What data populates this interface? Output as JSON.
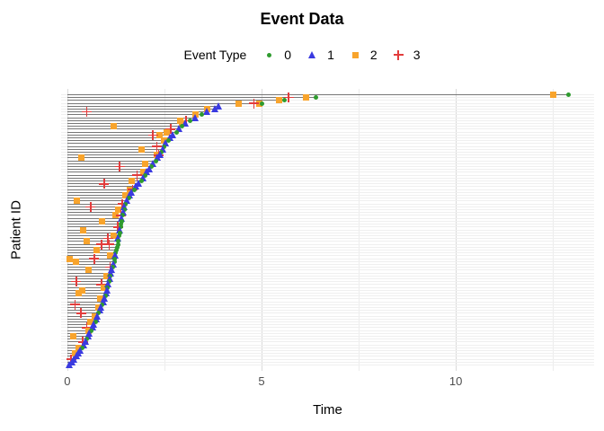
{
  "title": "Event Data",
  "legend": {
    "title": "Event Type",
    "items": [
      {
        "label": "0",
        "shape": "circle",
        "color": "#2e9b2e"
      },
      {
        "label": "1",
        "shape": "triangle",
        "color": "#3a3ae0"
      },
      {
        "label": "2",
        "shape": "square",
        "color": "#f8a42c"
      },
      {
        "label": "3",
        "shape": "plus",
        "color": "#e23c3c"
      }
    ]
  },
  "axes": {
    "x": {
      "label": "Time",
      "tick_labels": [
        "0",
        "5",
        "10"
      ],
      "ticks": [
        0,
        5,
        10
      ],
      "minor_gridlines": [
        2.5,
        7.5,
        12.5
      ],
      "range": [
        -0.16,
        13.56
      ]
    },
    "y": {
      "label": "Patient ID",
      "tick_labels": []
    }
  },
  "chart_data": {
    "type": "scatter",
    "title": "Event Data",
    "xlabel": "Time",
    "ylabel": "Patient ID",
    "xlim": [
      -0.16,
      13.56
    ],
    "grid": "light gray; horizontal line per patient row; vertical major at 0,5,10 and minor at 2.5,7.5,12.5",
    "legend_position": "top center",
    "n_patients": 95,
    "event_types": {
      "0": "green circle",
      "1": "blue triangle",
      "2": "orange square",
      "3": "red plus"
    },
    "colors": {
      "0": "#2e9b2e",
      "1": "#3a3ae0",
      "2": "#f8a42c",
      "3": "#e23c3c",
      "segment": "#777777"
    },
    "patients_note": "rows ordered top to bottom; each row = [end_time, end_event_type, [[time, event_type], ...] extra events]; gray segment spans 0..end_time",
    "patients": [
      [
        12.9,
        0,
        [
          [
            12.5,
            2
          ]
        ]
      ],
      [
        6.4,
        0,
        [
          [
            6.15,
            2
          ],
          [
            5.7,
            3
          ]
        ]
      ],
      [
        5.6,
        0,
        [
          [
            5.45,
            2
          ]
        ]
      ],
      [
        5.0,
        0,
        [
          [
            4.95,
            2
          ],
          [
            4.8,
            3
          ],
          [
            4.4,
            2
          ]
        ]
      ],
      [
        3.9,
        1,
        []
      ],
      [
        3.8,
        1,
        [
          [
            3.6,
            2
          ]
        ]
      ],
      [
        3.6,
        1,
        [
          [
            0.5,
            3
          ]
        ]
      ],
      [
        3.45,
        0,
        [
          [
            3.3,
            2
          ]
        ]
      ],
      [
        3.3,
        1,
        []
      ],
      [
        3.15,
        0,
        [
          [
            2.9,
            2
          ],
          [
            3.05,
            3
          ]
        ]
      ],
      [
        3.05,
        1,
        [
          [
            2.95,
            2
          ]
        ]
      ],
      [
        2.95,
        0,
        [
          [
            1.2,
            2
          ]
        ]
      ],
      [
        2.88,
        1,
        [
          [
            2.66,
            3
          ]
        ]
      ],
      [
        2.82,
        0,
        [
          [
            2.57,
            2
          ]
        ]
      ],
      [
        2.72,
        1,
        [
          [
            2.38,
            2
          ],
          [
            2.2,
            3
          ]
        ]
      ],
      [
        2.66,
        1,
        []
      ],
      [
        2.6,
        0,
        [
          [
            2.5,
            2
          ]
        ]
      ],
      [
        2.54,
        1,
        []
      ],
      [
        2.5,
        0,
        [
          [
            2.3,
            3
          ]
        ]
      ],
      [
        2.46,
        1,
        [
          [
            1.9,
            2
          ]
        ]
      ],
      [
        2.43,
        0,
        []
      ],
      [
        2.4,
        1,
        [
          [
            2.3,
            2
          ],
          [
            2.35,
            3
          ]
        ]
      ],
      [
        2.33,
        1,
        [
          [
            0.35,
            2
          ]
        ]
      ],
      [
        2.27,
        0,
        []
      ],
      [
        2.22,
        1,
        [
          [
            2.0,
            2
          ]
        ]
      ],
      [
        2.17,
        0,
        [
          [
            1.35,
            3
          ]
        ]
      ],
      [
        2.12,
        1,
        []
      ],
      [
        2.05,
        1,
        [
          [
            1.95,
            2
          ]
        ]
      ],
      [
        2.0,
        0,
        [
          [
            1.8,
            3
          ]
        ]
      ],
      [
        1.95,
        1,
        []
      ],
      [
        1.9,
        0,
        [
          [
            1.65,
            2
          ]
        ]
      ],
      [
        1.84,
        1,
        [
          [
            0.95,
            3
          ]
        ]
      ],
      [
        1.78,
        1,
        []
      ],
      [
        1.72,
        0,
        [
          [
            1.6,
            2
          ],
          [
            1.68,
            3
          ]
        ]
      ],
      [
        1.66,
        1,
        []
      ],
      [
        1.62,
        1,
        [
          [
            1.5,
            2
          ]
        ]
      ],
      [
        1.58,
        0,
        []
      ],
      [
        1.54,
        1,
        [
          [
            0.25,
            2
          ]
        ]
      ],
      [
        1.5,
        0,
        [
          [
            1.42,
            3
          ]
        ]
      ],
      [
        1.48,
        1,
        [
          [
            0.6,
            3
          ]
        ]
      ],
      [
        1.46,
        0,
        [
          [
            1.3,
            2
          ]
        ]
      ],
      [
        1.44,
        1,
        []
      ],
      [
        1.43,
        0,
        [
          [
            1.25,
            2
          ],
          [
            1.38,
            3
          ]
        ]
      ],
      [
        1.41,
        1,
        []
      ],
      [
        1.4,
        0,
        [
          [
            0.9,
            2
          ]
        ]
      ],
      [
        1.39,
        0,
        []
      ],
      [
        1.37,
        0,
        [
          [
            1.3,
            3
          ]
        ]
      ],
      [
        1.36,
        1,
        [
          [
            0.4,
            2
          ]
        ]
      ],
      [
        1.35,
        0,
        []
      ],
      [
        1.33,
        0,
        [
          [
            1.2,
            2
          ]
        ]
      ],
      [
        1.32,
        1,
        [
          [
            1.05,
            3
          ]
        ]
      ],
      [
        1.31,
        0,
        [
          [
            0.49,
            2
          ]
        ]
      ],
      [
        1.3,
        0,
        [
          [
            0.88,
            3
          ],
          [
            1.08,
            3
          ]
        ]
      ],
      [
        1.28,
        0,
        []
      ],
      [
        1.27,
        0,
        [
          [
            0.75,
            2
          ]
        ]
      ],
      [
        1.25,
        0,
        []
      ],
      [
        1.24,
        1,
        [
          [
            1.1,
            2
          ]
        ]
      ],
      [
        1.22,
        0,
        [
          [
            0.69,
            3
          ],
          [
            0.05,
            2
          ]
        ]
      ],
      [
        1.21,
        0,
        [
          [
            0.23,
            2
          ]
        ]
      ],
      [
        1.19,
        1,
        []
      ],
      [
        1.17,
        0,
        [
          [
            1.1,
            3
          ]
        ]
      ],
      [
        1.15,
        1,
        [
          [
            0.55,
            2
          ]
        ]
      ],
      [
        1.12,
        1,
        []
      ],
      [
        1.1,
        0,
        [
          [
            1.0,
            2
          ]
        ]
      ],
      [
        1.09,
        1,
        []
      ],
      [
        1.07,
        0,
        [
          [
            0.23,
            3
          ]
        ]
      ],
      [
        1.05,
        1,
        [
          [
            0.88,
            3
          ]
        ]
      ],
      [
        1.04,
        0,
        [
          [
            0.95,
            2
          ]
        ]
      ],
      [
        1.02,
        1,
        [
          [
            0.39,
            2
          ]
        ]
      ],
      [
        1.0,
        1,
        [
          [
            0.3,
            2
          ]
        ]
      ],
      [
        0.98,
        0,
        []
      ],
      [
        0.96,
        1,
        [
          [
            0.85,
            2
          ]
        ]
      ],
      [
        0.93,
        1,
        []
      ],
      [
        0.9,
        0,
        [
          [
            0.2,
            3
          ]
        ]
      ],
      [
        0.87,
        1,
        [
          [
            0.8,
            2
          ]
        ]
      ],
      [
        0.84,
        1,
        []
      ],
      [
        0.81,
        0,
        [
          [
            0.35,
            3
          ]
        ]
      ],
      [
        0.78,
        1,
        [
          [
            0.7,
            2
          ]
        ]
      ],
      [
        0.75,
        1,
        []
      ],
      [
        0.72,
        0,
        [
          [
            0.6,
            2
          ]
        ]
      ],
      [
        0.68,
        1,
        []
      ],
      [
        0.65,
        1,
        [
          [
            0.5,
            3
          ]
        ]
      ],
      [
        0.62,
        0,
        [
          [
            0.55,
            2
          ]
        ]
      ],
      [
        0.58,
        1,
        []
      ],
      [
        0.55,
        1,
        [
          [
            0.15,
            2
          ]
        ]
      ],
      [
        0.51,
        0,
        []
      ],
      [
        0.47,
        1,
        [
          [
            0.4,
            3
          ]
        ]
      ],
      [
        0.43,
        1,
        []
      ],
      [
        0.39,
        0,
        [
          [
            0.3,
            2
          ]
        ]
      ],
      [
        0.34,
        1,
        []
      ],
      [
        0.29,
        1,
        [
          [
            0.2,
            2
          ]
        ]
      ],
      [
        0.24,
        1,
        []
      ],
      [
        0.18,
        1,
        [
          [
            0.1,
            3
          ]
        ]
      ],
      [
        0.12,
        1,
        []
      ],
      [
        0.05,
        1,
        []
      ]
    ]
  }
}
